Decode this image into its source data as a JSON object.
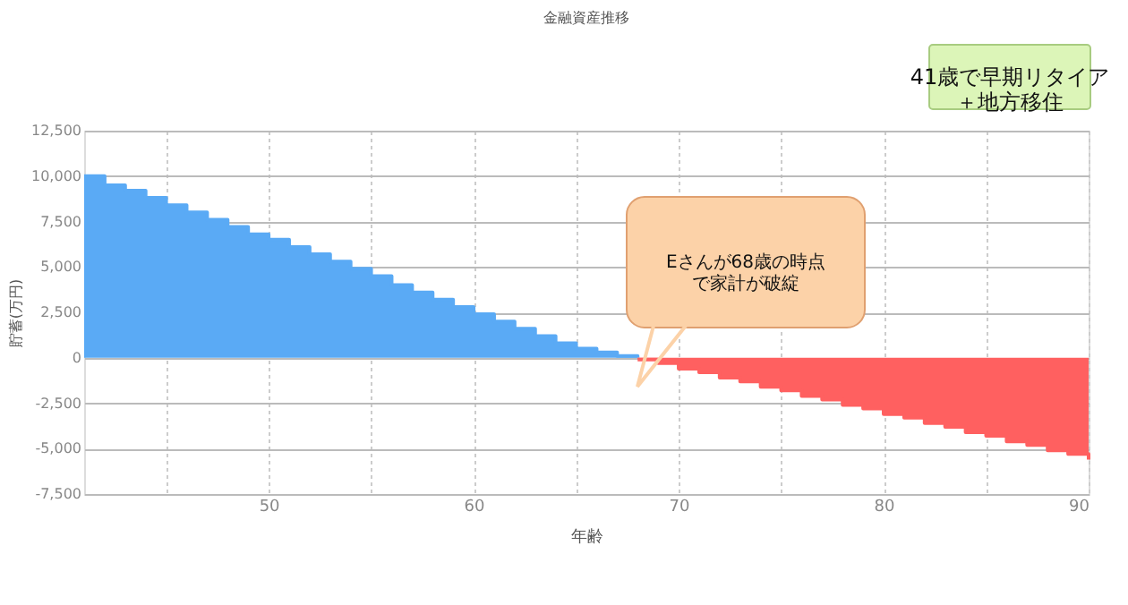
{
  "chart_data": {
    "type": "step",
    "title": "金融資産推移",
    "xlabel": "年齢",
    "ylabel": "貯蓄(万円)",
    "xlim": [
      41,
      90
    ],
    "xticks": [
      {
        "value": 45,
        "label": null
      },
      50,
      {
        "value": 55,
        "label": null
      },
      60,
      {
        "value": 65,
        "label": null
      },
      70,
      {
        "value": 75,
        "label": null
      },
      80,
      {
        "value": 85,
        "label": null
      },
      90
    ],
    "ylim": [
      -7500,
      12500
    ],
    "yticks": [
      {
        "value": -7500,
        "label": "-7,500"
      },
      {
        "value": -5000,
        "label": "-5,000"
      },
      {
        "value": -2500,
        "label": "-2,500"
      },
      0,
      {
        "value": 2500,
        "label": "2,500"
      },
      {
        "value": 5000,
        "label": "5,000"
      },
      {
        "value": 7500,
        "label": "7,500"
      },
      {
        "value": 10000,
        "label": "10,000"
      },
      {
        "value": 12500,
        "label": "12,500"
      }
    ],
    "grid": true,
    "line_style": "solid",
    "series": [
      {
        "type": "area",
        "color": "#5aaaf5",
        "x": [
          41,
          42,
          43,
          44,
          45,
          46,
          47,
          48,
          49,
          50,
          51,
          52,
          53,
          54,
          55,
          56,
          57,
          58,
          59,
          60,
          61,
          62,
          63,
          64,
          65,
          66,
          67,
          68
        ],
        "values": [
          10000,
          9500,
          9200,
          8800,
          8400,
          8000,
          7600,
          7200,
          6800,
          6500,
          6100,
          5700,
          5300,
          4900,
          4500,
          4000,
          3600,
          3200,
          2800,
          2400,
          2000,
          1600,
          1200,
          800,
          500,
          300,
          100,
          0
        ]
      },
      {
        "type": "area",
        "color": "#ff6060",
        "x": [
          68,
          69,
          70,
          71,
          72,
          73,
          74,
          75,
          76,
          77,
          78,
          79,
          80,
          81,
          82,
          83,
          84,
          85,
          86,
          87,
          88,
          89,
          90
        ],
        "values": [
          -100,
          -300,
          -600,
          -800,
          -1100,
          -1300,
          -1600,
          -1800,
          -2100,
          -2300,
          -2600,
          -2800,
          -3100,
          -3300,
          -3600,
          -3800,
          -4100,
          -4300,
          -4600,
          -4800,
          -5100,
          -5300,
          -5600
        ]
      }
    ],
    "annotations": [
      "41歳で早期リタイア＋地方移住",
      "Eさんが68歳の時点で家計が破綻"
    ]
  }
}
